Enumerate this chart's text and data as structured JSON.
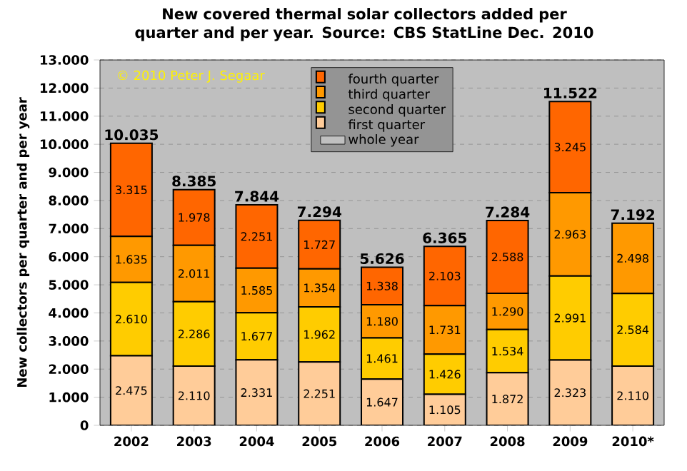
{
  "chart_data": {
    "type": "bar",
    "stacked": true,
    "title": "New covered thermal solar collectors added per quarter and per year. Source: CBS StatLine Dec. 2010",
    "ylabel": "New collectors per quarter and per year",
    "annotations": [
      "© 2010 Peter J. Segaar"
    ],
    "categories": [
      "2002",
      "2003",
      "2004",
      "2005",
      "2006",
      "2007",
      "2008",
      "2009",
      "2010*"
    ],
    "series": [
      {
        "name": "whole year",
        "color": "#c0c0c0",
        "values": [
          null,
          null,
          null,
          null,
          null,
          null,
          null,
          null,
          null
        ]
      },
      {
        "name": "first quarter",
        "color": "#ffcc99",
        "values": [
          2475,
          2110,
          2331,
          2251,
          1647,
          1105,
          1872,
          2323,
          2110
        ],
        "value_labels": [
          "2.475",
          "2.110",
          "2.331",
          "2.251",
          "1.647",
          "1.105",
          "1.872",
          "2.323",
          "2.110"
        ]
      },
      {
        "name": "second quarter",
        "color": "#ffcc00",
        "values": [
          2610,
          2286,
          1677,
          1962,
          1461,
          1426,
          1534,
          2991,
          2584
        ],
        "value_labels": [
          "2.610",
          "2.286",
          "1.677",
          "1.962",
          "1.461",
          "1.426",
          "1.534",
          "2.991",
          "2.584"
        ]
      },
      {
        "name": "third quarter",
        "color": "#ff9900",
        "values": [
          1635,
          2011,
          1585,
          1354,
          1180,
          1731,
          1290,
          2963,
          2498
        ],
        "value_labels": [
          "1.635",
          "2.011",
          "1.585",
          "1.354",
          "1.180",
          "1.731",
          "1.290",
          "2.963",
          "2.498"
        ]
      },
      {
        "name": "fourth quarter",
        "color": "#ff6600",
        "values": [
          3315,
          1978,
          2251,
          1727,
          1338,
          2103,
          2588,
          3245,
          null
        ],
        "value_labels": [
          "3.315",
          "1.978",
          "2.251",
          "1.727",
          "1.338",
          "2.103",
          "2.588",
          "3.245",
          null
        ]
      }
    ],
    "totals": [
      "10.035",
      "8.385",
      "7.844",
      "7.294",
      "5.626",
      "6.365",
      "7.284",
      "11.522",
      "7.192"
    ],
    "ylim": [
      0,
      13000
    ],
    "yticks": [
      {
        "value": 0,
        "label": "0"
      },
      {
        "value": 1000,
        "label": "1.000"
      },
      {
        "value": 2000,
        "label": "2.000"
      },
      {
        "value": 3000,
        "label": "3.000"
      },
      {
        "value": 4000,
        "label": "4.000"
      },
      {
        "value": 5000,
        "label": "5.000"
      },
      {
        "value": 6000,
        "label": "6.000"
      },
      {
        "value": 7000,
        "label": "7.000"
      },
      {
        "value": 8000,
        "label": "8.000"
      },
      {
        "value": 9000,
        "label": "9.000"
      },
      {
        "value": 10000,
        "label": "10.000"
      },
      {
        "value": 11000,
        "label": "11.000"
      },
      {
        "value": 12000,
        "label": "12.000"
      },
      {
        "value": 13000,
        "label": "13.000"
      }
    ],
    "grid": "y",
    "legend": "top"
  }
}
